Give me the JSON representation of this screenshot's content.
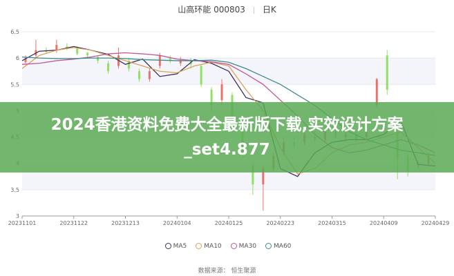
{
  "header": {
    "stock": "山高环能 000803",
    "period": "日K"
  },
  "banner": {
    "text": "2024香港资料免费大全最新版下载,实效设计方案_set4.877"
  },
  "source": "数据来源： 恒生聚源",
  "chart_data": {
    "type": "candlestick",
    "ylim": [
      3,
      6.5
    ],
    "yticks": [
      "6.5",
      "6",
      "5.5",
      "5",
      "4.5",
      "4",
      "3.5",
      "3"
    ],
    "xticks": [
      "20231101",
      "20231122",
      "20231213",
      "20240104",
      "20240125",
      "20240223",
      "20240315",
      "20240409",
      "20240429"
    ],
    "x_count": 120,
    "grid": true,
    "legend_position": "bottom",
    "colors": {
      "up": "#e8736b",
      "down": "#8fe063",
      "MA5": "#3b2f5c",
      "MA10": "#d9a25a",
      "MA30": "#c0569a",
      "MA60": "#3f8a8a"
    },
    "ma_step": 5,
    "series": [
      {
        "name": "MA5",
        "values": [
          5.95,
          6.13,
          6.15,
          6.22,
          6.15,
          6.07,
          5.88,
          5.98,
          5.65,
          5.7,
          5.97,
          5.9,
          5.75,
          5.25,
          5.15,
          3.9,
          3.75,
          4.2,
          4.4,
          4.45,
          4.45,
          4.55,
          4.8,
          3.98,
          3.95
        ]
      },
      {
        "name": "MA10",
        "values": [
          5.8,
          6.05,
          6.15,
          6.2,
          6.15,
          6.05,
          5.95,
          5.85,
          5.75,
          5.72,
          5.85,
          5.92,
          5.85,
          5.4,
          5.0,
          4.3,
          3.8,
          3.9,
          4.2,
          4.35,
          4.4,
          4.5,
          4.6,
          4.3,
          4.0
        ]
      },
      {
        "name": "MA30",
        "values": [
          5.88,
          5.9,
          5.95,
          5.98,
          6.02,
          6.08,
          6.1,
          6.08,
          6.05,
          5.98,
          5.95,
          5.93,
          5.88,
          5.7,
          5.5,
          5.2,
          4.9,
          4.55,
          4.3,
          4.2,
          4.25,
          4.35,
          4.45,
          4.35,
          4.2
        ]
      },
      {
        "name": "MA60",
        "values": [
          6.02,
          6.0,
          5.99,
          5.99,
          6.0,
          6.0,
          5.99,
          5.97,
          5.96,
          5.95,
          5.95,
          5.96,
          5.92,
          5.8,
          5.65,
          5.5,
          5.3,
          5.1,
          4.85,
          4.6,
          4.45,
          4.35,
          4.25,
          4.2,
          4.15
        ]
      }
    ],
    "candles_step": 3,
    "candles": [
      [
        5.92,
        6.0,
        5.9,
        6.05
      ],
      [
        6.05,
        6.15,
        6.0,
        6.35
      ],
      [
        6.15,
        6.12,
        6.08,
        6.2
      ],
      [
        6.15,
        6.25,
        6.1,
        6.35
      ],
      [
        6.22,
        6.18,
        6.15,
        6.28
      ],
      [
        6.2,
        6.08,
        6.05,
        6.22
      ],
      [
        6.1,
        6.05,
        6.0,
        6.12
      ],
      [
        6.02,
        5.95,
        5.9,
        6.05
      ],
      [
        5.9,
        5.75,
        5.7,
        5.95
      ],
      [
        5.85,
        6.05,
        5.8,
        6.2
      ],
      [
        5.95,
        5.8,
        5.75,
        6.0
      ],
      [
        5.75,
        5.6,
        5.55,
        5.8
      ],
      [
        5.6,
        5.75,
        5.55,
        5.8
      ],
      [
        5.85,
        6.05,
        5.8,
        6.1
      ],
      [
        6.0,
        5.95,
        5.9,
        6.05
      ],
      [
        5.9,
        5.95,
        5.85,
        6.02
      ],
      [
        5.95,
        5.88,
        5.8,
        6.0
      ],
      [
        5.85,
        5.5,
        5.45,
        5.88
      ],
      [
        5.4,
        5.1,
        5.0,
        5.45
      ],
      [
        5.2,
        5.5,
        5.1,
        5.6
      ],
      [
        5.3,
        4.8,
        4.7,
        5.35
      ],
      [
        4.6,
        4.2,
        4.1,
        4.7
      ],
      [
        3.95,
        3.6,
        3.4,
        4.0
      ],
      [
        3.6,
        3.9,
        3.1,
        3.95
      ],
      [
        3.9,
        4.15,
        3.85,
        4.2
      ],
      [
        4.2,
        4.4,
        4.15,
        4.5
      ],
      [
        4.4,
        4.35,
        4.3,
        4.5
      ],
      [
        4.4,
        4.55,
        4.35,
        4.6
      ],
      [
        4.5,
        4.45,
        4.4,
        4.6
      ],
      [
        4.45,
        4.6,
        4.4,
        4.65
      ],
      [
        4.6,
        4.5,
        4.45,
        4.65
      ],
      [
        4.5,
        4.55,
        4.45,
        4.6
      ],
      [
        4.55,
        4.45,
        4.4,
        4.6
      ],
      [
        4.5,
        4.6,
        4.45,
        4.65
      ],
      [
        5.1,
        5.6,
        5.05,
        5.62
      ],
      [
        6.05,
        5.4,
        5.3,
        6.15
      ],
      [
        4.6,
        4.1,
        3.7,
        4.65
      ],
      [
        4.1,
        3.85,
        3.75,
        4.15
      ],
      [
        3.95,
        4.0,
        3.9,
        4.05
      ],
      [
        4.0,
        4.15,
        3.95,
        4.2
      ]
    ]
  }
}
